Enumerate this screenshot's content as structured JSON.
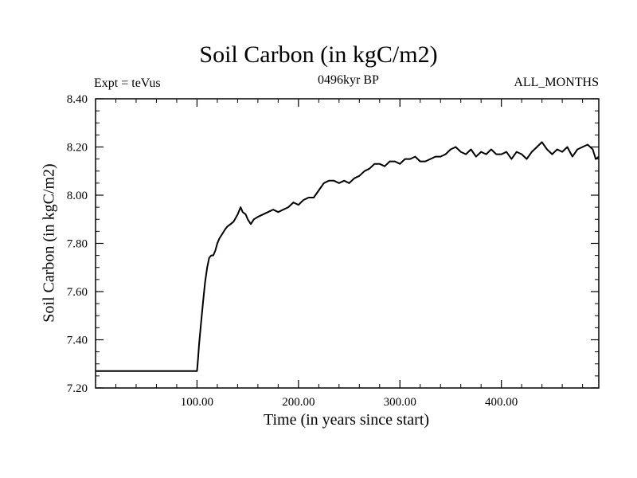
{
  "chart_data": {
    "type": "line",
    "title": "Soil Carbon (in kgC/m2)",
    "subtitle_left": "Expt = teVus",
    "subtitle_center": "0496kyr BP",
    "subtitle_right": "ALL_MONTHS",
    "xlabel": "Time (in years since start)",
    "ylabel": "Soil Carbon (in kgC/m2)",
    "xlim": [
      0,
      496
    ],
    "ylim": [
      7.2,
      8.4
    ],
    "x_ticks": [
      {
        "value": 100,
        "label": "100.00"
      },
      {
        "value": 200,
        "label": "200.00"
      },
      {
        "value": 300,
        "label": "300.00"
      },
      {
        "value": 400,
        "label": "400.00"
      }
    ],
    "y_ticks": [
      {
        "value": 7.2,
        "label": "7.20"
      },
      {
        "value": 7.4,
        "label": "7.40"
      },
      {
        "value": 7.6,
        "label": "7.60"
      },
      {
        "value": 7.8,
        "label": "7.80"
      },
      {
        "value": 8.0,
        "label": "8.00"
      },
      {
        "value": 8.2,
        "label": "8.20"
      },
      {
        "value": 8.4,
        "label": "8.40"
      }
    ],
    "grid": false,
    "series": [
      {
        "color": "#000000",
        "x": [
          0,
          99,
          100,
          101,
          102,
          104,
          106,
          108,
          110,
          112,
          114,
          116,
          118,
          120,
          122,
          125,
          128,
          130,
          133,
          136,
          140,
          143,
          145,
          148,
          150,
          153,
          156,
          160,
          165,
          170,
          175,
          180,
          185,
          190,
          195,
          200,
          205,
          210,
          215,
          220,
          225,
          230,
          235,
          240,
          245,
          250,
          255,
          260,
          265,
          270,
          275,
          280,
          285,
          290,
          295,
          300,
          305,
          310,
          315,
          320,
          325,
          330,
          335,
          340,
          345,
          350,
          355,
          360,
          365,
          370,
          375,
          380,
          385,
          390,
          395,
          400,
          405,
          410,
          415,
          420,
          425,
          430,
          435,
          440,
          445,
          450,
          455,
          460,
          465,
          470,
          475,
          480,
          485,
          490,
          493,
          496
        ],
        "y": [
          7.27,
          7.27,
          7.27,
          7.32,
          7.38,
          7.47,
          7.56,
          7.64,
          7.7,
          7.74,
          7.75,
          7.75,
          7.77,
          7.8,
          7.82,
          7.84,
          7.86,
          7.87,
          7.88,
          7.89,
          7.92,
          7.95,
          7.93,
          7.92,
          7.9,
          7.88,
          7.9,
          7.91,
          7.92,
          7.93,
          7.94,
          7.93,
          7.94,
          7.95,
          7.97,
          7.96,
          7.98,
          7.99,
          7.99,
          8.02,
          8.05,
          8.06,
          8.06,
          8.05,
          8.06,
          8.05,
          8.07,
          8.08,
          8.1,
          8.11,
          8.13,
          8.13,
          8.12,
          8.14,
          8.14,
          8.13,
          8.15,
          8.15,
          8.16,
          8.14,
          8.14,
          8.15,
          8.16,
          8.16,
          8.17,
          8.19,
          8.2,
          8.18,
          8.17,
          8.19,
          8.16,
          8.18,
          8.17,
          8.19,
          8.17,
          8.17,
          8.18,
          8.15,
          8.18,
          8.17,
          8.15,
          8.18,
          8.2,
          8.22,
          8.19,
          8.17,
          8.19,
          8.18,
          8.2,
          8.16,
          8.19,
          8.2,
          8.21,
          8.19,
          8.15,
          8.16
        ]
      }
    ]
  }
}
